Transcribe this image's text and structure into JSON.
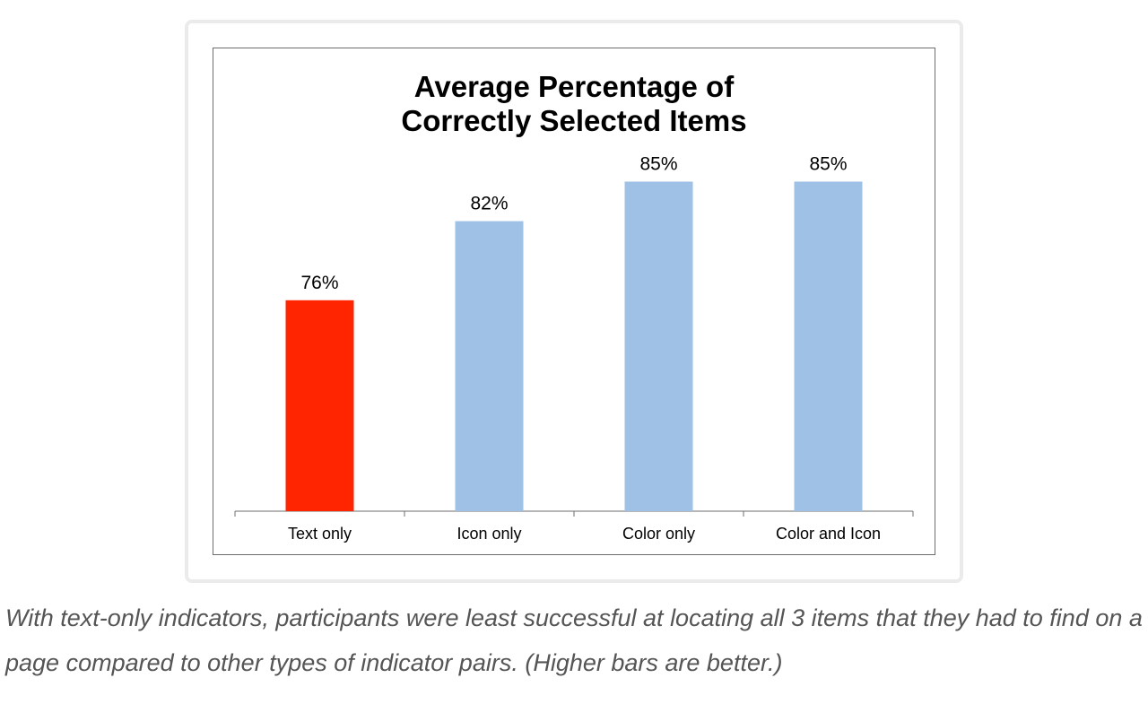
{
  "chart_data": {
    "type": "bar",
    "title": [
      "Average Percentage of",
      "Correctly Selected Items"
    ],
    "categories": [
      "Text only",
      "Icon only",
      "Color only",
      "Color and Icon"
    ],
    "values": [
      76,
      82,
      85,
      85
    ],
    "value_labels": [
      "76%",
      "82%",
      "85%",
      "85%"
    ],
    "bar_colors": [
      "#ff2500",
      "#9fc1e6",
      "#9fc1e6",
      "#9fc1e6"
    ],
    "axis_color": "#6d6d6d",
    "xlabel": "",
    "ylabel": "",
    "ylim": [
      60,
      90
    ],
    "grid": false,
    "legend": "none"
  },
  "caption": "With text-only indicators, participants were least successful at locating all 3 items that they had to find on a page compared to other types of indicator pairs. (Higher bars are better.)"
}
